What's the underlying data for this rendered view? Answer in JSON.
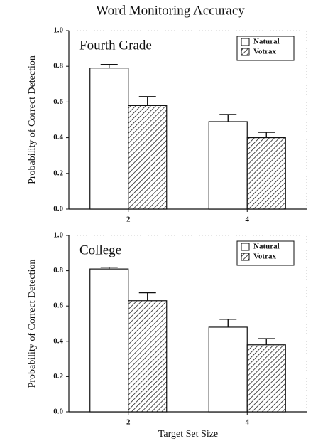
{
  "chart_data": [
    {
      "type": "bar",
      "title": "Word Monitoring Accuracy",
      "annotation": "Fourth Grade",
      "ylabel": "Probability of Correct Detection",
      "categories": [
        "2",
        "4"
      ],
      "series": [
        {
          "name": "Natural",
          "color": "#ffffff",
          "hatch": false,
          "values": [
            0.79,
            0.49
          ],
          "errors": [
            0.02,
            0.04
          ]
        },
        {
          "name": "Votrax",
          "color": "#ffffff",
          "hatch": true,
          "values": [
            0.58,
            0.4
          ],
          "errors": [
            0.05,
            0.03
          ]
        }
      ],
      "ylim": [
        0,
        1
      ],
      "yticks": [
        {
          "value": 0,
          "label": "0.0"
        },
        0.2,
        0.4,
        0.6,
        0.8,
        {
          "value": 1,
          "label": "1.0"
        }
      ],
      "legend": "upper right"
    },
    {
      "type": "bar",
      "annotation": "College",
      "xlabel": "Target Set Size",
      "ylabel": "Probability of Correct Detection",
      "categories": [
        "2",
        "4"
      ],
      "series": [
        {
          "name": "Natural",
          "color": "#ffffff",
          "hatch": false,
          "values": [
            0.81,
            0.48
          ],
          "errors": [
            0.01,
            0.045
          ]
        },
        {
          "name": "Votrax",
          "color": "#ffffff",
          "hatch": true,
          "values": [
            0.63,
            0.38
          ],
          "errors": [
            0.045,
            0.035
          ]
        }
      ],
      "ylim": [
        0,
        1
      ],
      "yticks": [
        {
          "value": 0,
          "label": "0.0"
        },
        0.2,
        0.4,
        0.6,
        0.8,
        {
          "value": 1,
          "label": "1.0"
        }
      ],
      "legend": "upper right"
    }
  ]
}
